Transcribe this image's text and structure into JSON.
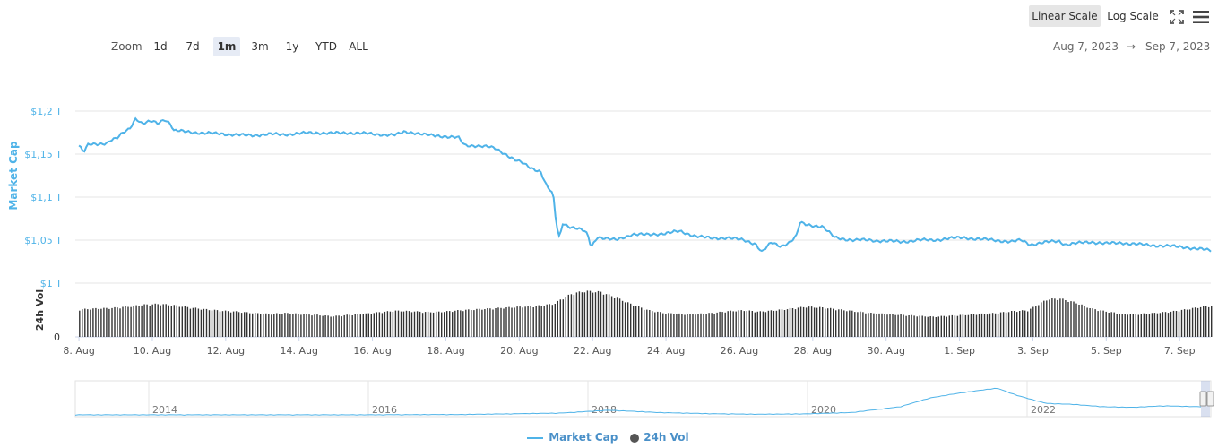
{
  "toolbar": {
    "linear_label": "Linear Scale",
    "log_label": "Log Scale",
    "fullscreen_icon": "expand-icon",
    "menu_icon": "hamburger-menu-icon"
  },
  "zoom": {
    "label": "Zoom",
    "options": [
      "1d",
      "7d",
      "1m",
      "3m",
      "1y",
      "YTD",
      "ALL"
    ],
    "selected": "1m"
  },
  "range": {
    "from": "Aug 7, 2023",
    "arrow": "→",
    "to": "Sep 7, 2023"
  },
  "colors": {
    "market_cap": "#4fb3e8",
    "volume": "#333333",
    "navigator_line": "#4fb3e8",
    "axis_label": "#4fb3e8"
  },
  "chart_data": {
    "type": "line",
    "ylabel": "Market Cap",
    "ylabel2": "24h Vol",
    "yticks": [
      "$1,2 T",
      "$1,15 T",
      "$1,1 T",
      "$1,05 T",
      "$1 T"
    ],
    "ylim": [
      1.0,
      1.2
    ],
    "y2ticks": [
      "0"
    ],
    "xticks": [
      "8. Aug",
      "10. Aug",
      "12. Aug",
      "14. Aug",
      "16. Aug",
      "18. Aug",
      "20. Aug",
      "22. Aug",
      "24. Aug",
      "26. Aug",
      "28. Aug",
      "30. Aug",
      "1. Sep",
      "3. Sep",
      "5. Sep",
      "7. Sep"
    ],
    "xrange_days": [
      -0.1,
      30.85
    ],
    "grid": true,
    "legend_position": "bottom-center",
    "series": [
      {
        "name": "Market Cap",
        "unit": "T USD",
        "points": [
          [
            0.0,
            1.16
          ],
          [
            0.15,
            1.152
          ],
          [
            0.3,
            1.161
          ],
          [
            0.6,
            1.162
          ],
          [
            0.9,
            1.163
          ],
          [
            1.0,
            1.166
          ],
          [
            1.2,
            1.168
          ],
          [
            1.4,
            1.175
          ],
          [
            1.6,
            1.18
          ],
          [
            1.8,
            1.192
          ],
          [
            2.0,
            1.185
          ],
          [
            2.3,
            1.188
          ],
          [
            2.5,
            1.186
          ],
          [
            2.7,
            1.191
          ],
          [
            2.9,
            1.185
          ],
          [
            3.0,
            1.177
          ],
          [
            3.5,
            1.176
          ],
          [
            4.0,
            1.174
          ],
          [
            4.5,
            1.174
          ],
          [
            5.0,
            1.172
          ],
          [
            5.5,
            1.172
          ],
          [
            6.0,
            1.173
          ],
          [
            6.5,
            1.173
          ],
          [
            7.0,
            1.174
          ],
          [
            7.5,
            1.175
          ],
          [
            8.0,
            1.174
          ],
          [
            8.5,
            1.175
          ],
          [
            9.0,
            1.174
          ],
          [
            9.5,
            1.173
          ],
          [
            10.0,
            1.172
          ],
          [
            10.3,
            1.176
          ],
          [
            10.6,
            1.175
          ],
          [
            11.0,
            1.172
          ],
          [
            11.5,
            1.171
          ],
          [
            12.0,
            1.169
          ],
          [
            12.2,
            1.16
          ],
          [
            12.6,
            1.16
          ],
          [
            13.0,
            1.158
          ],
          [
            13.2,
            1.156
          ],
          [
            13.5,
            1.15
          ],
          [
            13.8,
            1.143
          ],
          [
            14.0,
            1.14
          ],
          [
            14.3,
            1.134
          ],
          [
            14.6,
            1.13
          ],
          [
            14.8,
            1.112
          ],
          [
            14.9,
            1.108
          ],
          [
            15.0,
            1.102
          ],
          [
            15.1,
            1.068
          ],
          [
            15.2,
            1.052
          ],
          [
            15.3,
            1.07
          ],
          [
            15.5,
            1.066
          ],
          [
            15.8,
            1.063
          ],
          [
            16.0,
            1.06
          ],
          [
            16.1,
            1.055
          ],
          [
            16.2,
            1.042
          ],
          [
            16.4,
            1.054
          ],
          [
            16.8,
            1.051
          ],
          [
            17.0,
            1.05
          ],
          [
            17.5,
            1.057
          ],
          [
            18.0,
            1.056
          ],
          [
            18.5,
            1.058
          ],
          [
            19.0,
            1.06
          ],
          [
            19.5,
            1.055
          ],
          [
            20.0,
            1.052
          ],
          [
            20.5,
            1.053
          ],
          [
            21.0,
            1.05
          ],
          [
            21.4,
            1.046
          ],
          [
            21.6,
            1.036
          ],
          [
            21.9,
            1.047
          ],
          [
            22.2,
            1.043
          ],
          [
            22.5,
            1.048
          ],
          [
            22.7,
            1.055
          ],
          [
            22.8,
            1.07
          ],
          [
            23.0,
            1.068
          ],
          [
            23.5,
            1.066
          ],
          [
            23.9,
            1.053
          ],
          [
            24.5,
            1.05
          ],
          [
            25.0,
            1.05
          ],
          [
            25.5,
            1.049
          ],
          [
            26.0,
            1.048
          ],
          [
            26.5,
            1.05
          ],
          [
            27.0,
            1.05
          ],
          [
            27.5,
            1.052
          ],
          [
            28.0,
            1.053
          ],
          [
            28.5,
            1.051
          ],
          [
            29.0,
            1.05
          ],
          [
            29.5,
            1.048
          ],
          [
            29.8,
            1.05
          ],
          [
            30.1,
            1.045
          ],
          [
            30.3,
            1.046
          ],
          [
            30.7,
            1.048
          ],
          [
            31.0,
            1.049
          ],
          [
            31.2,
            1.045
          ],
          [
            31.5,
            1.046
          ],
          [
            32.0,
            1.048
          ],
          [
            32.5,
            1.046
          ],
          [
            33.0,
            1.047
          ],
          [
            33.5,
            1.045
          ],
          [
            34.0,
            1.044
          ],
          [
            34.5,
            1.043
          ],
          [
            35.0,
            1.042
          ],
          [
            35.3,
            1.04
          ],
          [
            35.6,
            1.039
          ],
          [
            35.8,
            1.038
          ]
        ]
      },
      {
        "name": "24h Vol",
        "unit": "relative",
        "points": [
          [
            0.0,
            0.6
          ],
          [
            0.5,
            0.62
          ],
          [
            1.0,
            0.63
          ],
          [
            1.5,
            0.66
          ],
          [
            2.0,
            0.7
          ],
          [
            2.5,
            0.72
          ],
          [
            3.0,
            0.69
          ],
          [
            3.5,
            0.64
          ],
          [
            4.0,
            0.6
          ],
          [
            4.5,
            0.57
          ],
          [
            5.0,
            0.55
          ],
          [
            5.5,
            0.52
          ],
          [
            6.0,
            0.5
          ],
          [
            6.5,
            0.52
          ],
          [
            7.0,
            0.5
          ],
          [
            7.5,
            0.48
          ],
          [
            8.0,
            0.45
          ],
          [
            8.5,
            0.48
          ],
          [
            9.0,
            0.5
          ],
          [
            9.5,
            0.54
          ],
          [
            10.0,
            0.57
          ],
          [
            10.5,
            0.56
          ],
          [
            11.0,
            0.54
          ],
          [
            11.5,
            0.55
          ],
          [
            12.0,
            0.58
          ],
          [
            12.5,
            0.6
          ],
          [
            13.0,
            0.62
          ],
          [
            13.5,
            0.64
          ],
          [
            14.0,
            0.66
          ],
          [
            14.5,
            0.68
          ],
          [
            15.0,
            0.72
          ],
          [
            15.3,
            0.85
          ],
          [
            15.6,
            0.95
          ],
          [
            16.0,
            1.0
          ],
          [
            16.5,
            0.98
          ],
          [
            17.0,
            0.85
          ],
          [
            17.5,
            0.7
          ],
          [
            18.0,
            0.58
          ],
          [
            18.5,
            0.52
          ],
          [
            19.0,
            0.5
          ],
          [
            19.5,
            0.5
          ],
          [
            20.0,
            0.52
          ],
          [
            20.5,
            0.56
          ],
          [
            21.0,
            0.58
          ],
          [
            21.5,
            0.55
          ],
          [
            22.0,
            0.58
          ],
          [
            22.5,
            0.62
          ],
          [
            23.0,
            0.66
          ],
          [
            23.5,
            0.64
          ],
          [
            24.0,
            0.6
          ],
          [
            24.5,
            0.56
          ],
          [
            25.0,
            0.52
          ],
          [
            25.5,
            0.5
          ],
          [
            26.0,
            0.48
          ],
          [
            26.5,
            0.46
          ],
          [
            27.0,
            0.44
          ],
          [
            27.5,
            0.46
          ],
          [
            28.0,
            0.48
          ],
          [
            28.5,
            0.5
          ],
          [
            29.0,
            0.52
          ],
          [
            29.5,
            0.56
          ],
          [
            30.0,
            0.58
          ],
          [
            30.3,
            0.7
          ],
          [
            30.6,
            0.82
          ],
          [
            31.0,
            0.84
          ],
          [
            31.5,
            0.75
          ],
          [
            32.0,
            0.62
          ],
          [
            32.5,
            0.55
          ],
          [
            33.0,
            0.5
          ],
          [
            33.5,
            0.5
          ],
          [
            34.0,
            0.52
          ],
          [
            34.5,
            0.55
          ],
          [
            35.0,
            0.6
          ],
          [
            35.5,
            0.66
          ],
          [
            35.8,
            0.68
          ]
        ]
      }
    ],
    "navigator": {
      "labels": [
        "2014",
        "2016",
        "2018",
        "2020",
        "2022"
      ],
      "series": [
        [
          0,
          0.02
        ],
        [
          10,
          0.02
        ],
        [
          20,
          0.02
        ],
        [
          30,
          0.02
        ],
        [
          40,
          0.03
        ],
        [
          50,
          0.08
        ],
        [
          55,
          0.18
        ],
        [
          60,
          0.1
        ],
        [
          65,
          0.06
        ],
        [
          70,
          0.04
        ],
        [
          75,
          0.05
        ],
        [
          80,
          0.1
        ],
        [
          85,
          0.3
        ],
        [
          88,
          0.6
        ],
        [
          90,
          0.72
        ],
        [
          92,
          0.82
        ],
        [
          95,
          0.95
        ],
        [
          97,
          0.7
        ],
        [
          100,
          0.42
        ],
        [
          103,
          0.38
        ],
        [
          106,
          0.3
        ],
        [
          109,
          0.28
        ],
        [
          112,
          0.33
        ],
        [
          116,
          0.3
        ]
      ]
    }
  },
  "legend": {
    "market_cap": "Market Cap",
    "vol": "24h Vol"
  }
}
